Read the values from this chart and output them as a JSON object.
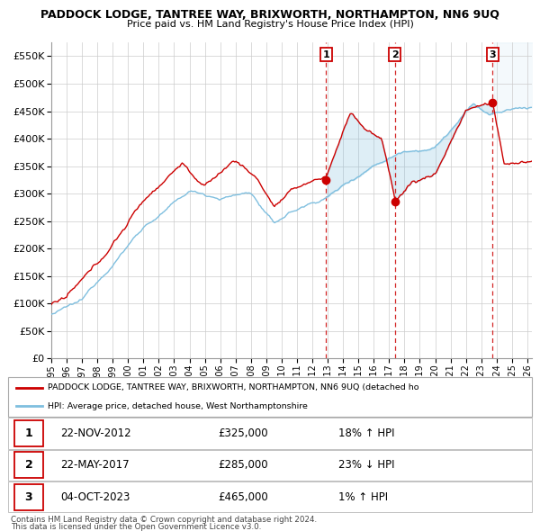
{
  "title": "PADDOCK LODGE, TANTREE WAY, BRIXWORTH, NORTHAMPTON, NN6 9UQ",
  "subtitle": "Price paid vs. HM Land Registry's House Price Index (HPI)",
  "ylim": [
    0,
    575000
  ],
  "yticks": [
    0,
    50000,
    100000,
    150000,
    200000,
    250000,
    300000,
    350000,
    400000,
    450000,
    500000,
    550000
  ],
  "xlim_start": 1995.0,
  "xlim_end": 2026.3,
  "sale_points": [
    {
      "label": "1",
      "date_num": 2012.9,
      "price": 325000
    },
    {
      "label": "2",
      "date_num": 2017.38,
      "price": 285000
    },
    {
      "label": "3",
      "date_num": 2023.75,
      "price": 465000
    }
  ],
  "table_rows": [
    {
      "num": "1",
      "date": "22-NOV-2012",
      "price": "£325,000",
      "hpi": "18% ↑ HPI"
    },
    {
      "num": "2",
      "date": "22-MAY-2017",
      "price": "£285,000",
      "hpi": "23% ↓ HPI"
    },
    {
      "num": "3",
      "date": "04-OCT-2023",
      "price": "£465,000",
      "hpi": "1% ↑ HPI"
    }
  ],
  "legend_line1": "PADDOCK LODGE, TANTREE WAY, BRIXWORTH, NORTHAMPTON, NN6 9UQ (detached ho",
  "legend_line2": "HPI: Average price, detached house, West Northamptonshire",
  "footer1": "Contains HM Land Registry data © Crown copyright and database right 2024.",
  "footer2": "This data is licensed under the Open Government Licence v3.0.",
  "hpi_color": "#7fbfdf",
  "price_color": "#cc0000",
  "vline_color": "#cc0000",
  "grid_color": "#cccccc",
  "background_color": "#ffffff"
}
